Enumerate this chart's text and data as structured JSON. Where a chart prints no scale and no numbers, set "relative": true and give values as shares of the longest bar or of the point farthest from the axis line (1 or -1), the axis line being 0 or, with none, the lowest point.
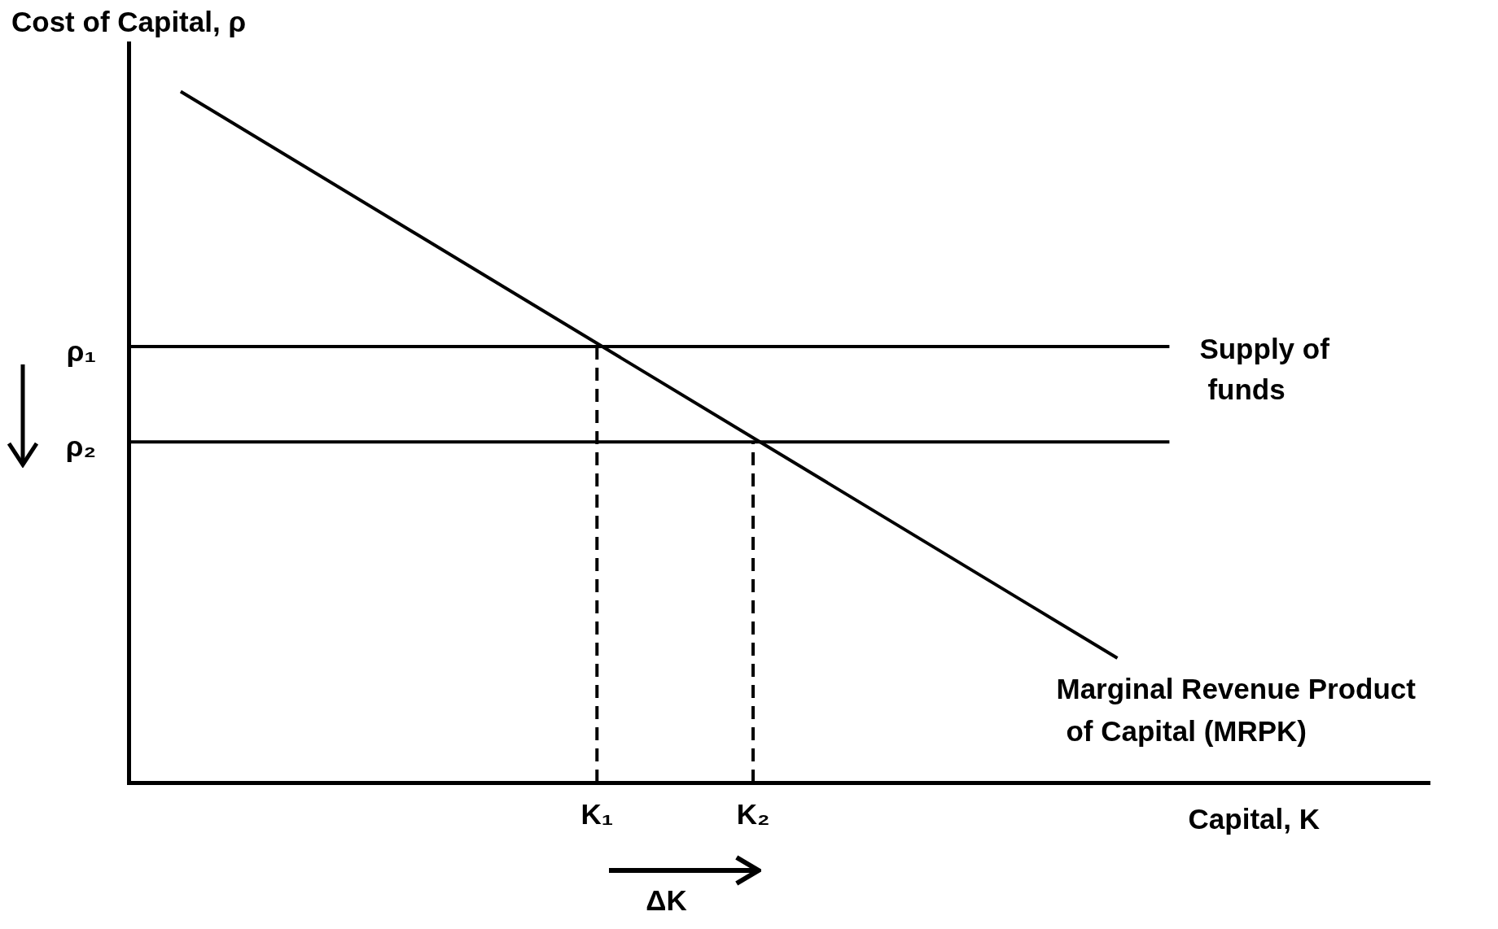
{
  "chart_data": {
    "type": "line",
    "ylabel": "Cost of Capital, ρ",
    "xlabel": "Capital, K",
    "relative": true,
    "categories": [
      null,
      null,
      null,
      null,
      null,
      null,
      null,
      null,
      null,
      "K₁",
      null,
      null,
      "K₂",
      null,
      null,
      null,
      null,
      null,
      null,
      null,
      null,
      null,
      null,
      null,
      null,
      null
    ],
    "tick_labels": "x",
    "marker": "none",
    "annotations": [
      "ρ₁",
      "ρ₂",
      "ΔK"
    ],
    "series": [
      {
        "name": "Marginal Revenue Product of Capital (MRPK)",
        "color": "#000000",
        "values": [
          null,
          1,
          null,
          null,
          null,
          null,
          null,
          null,
          null,
          null,
          null,
          null,
          null,
          null,
          null,
          null,
          null,
          null,
          null,
          0.18,
          null,
          null,
          null,
          null,
          null,
          null
        ]
      },
      {
        "name": "Supply of funds",
        "color": "#000000",
        "values": [
          0.631,
          null,
          null,
          null,
          null,
          null,
          null,
          null,
          null,
          null,
          null,
          null,
          null,
          null,
          null,
          null,
          null,
          null,
          null,
          null,
          0.631,
          null,
          null,
          null,
          null,
          null
        ]
      },
      {
        "color": "#000000",
        "values": [
          0.493,
          null,
          null,
          null,
          null,
          null,
          null,
          null,
          null,
          null,
          null,
          null,
          null,
          null,
          null,
          null,
          null,
          null,
          null,
          null,
          0.493,
          null,
          null,
          null,
          null,
          null
        ]
      },
      {
        "color": "#000000",
        "x": [
          "K₁",
          "K₁"
        ],
        "values": [
          0,
          0.631
        ],
        "line_style": "dashed"
      },
      {
        "color": "#000000",
        "x": [
          "K₂",
          "K₂"
        ],
        "values": [
          0,
          0.493
        ],
        "line_style": "dashed"
      }
    ]
  }
}
